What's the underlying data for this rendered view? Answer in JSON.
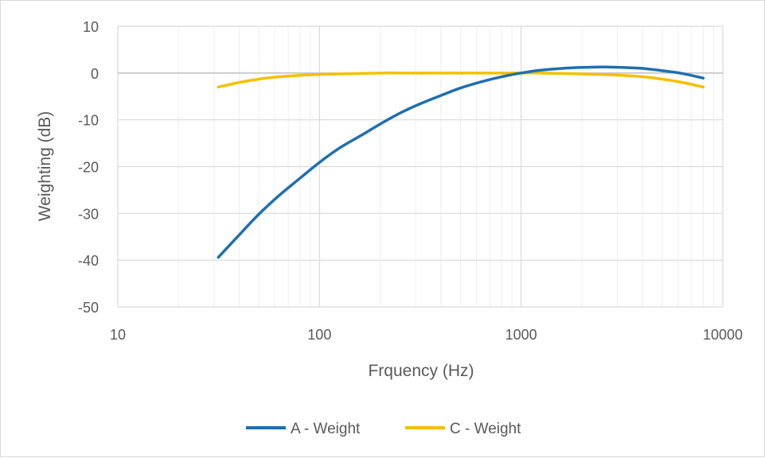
{
  "chart_data": {
    "type": "line",
    "title": "",
    "xlabel": "Frquency (Hz)",
    "ylabel": "Weighting (dB)",
    "x_scale": "log",
    "xlim": [
      10,
      10000
    ],
    "ylim": [
      -50,
      10
    ],
    "x_ticks": [
      "10",
      "100",
      "1000",
      "10000"
    ],
    "y_ticks": [
      "10",
      "0",
      "-10",
      "-20",
      "-30",
      "-40",
      "-50"
    ],
    "grid": true,
    "legend_position": "bottom",
    "series": [
      {
        "name": "A - Weight",
        "color": "#1f6fb0",
        "x": [
          31.5,
          40,
          50,
          63,
          80,
          100,
          125,
          160,
          200,
          250,
          315,
          400,
          500,
          630,
          800,
          1000,
          1250,
          1600,
          2000,
          2500,
          3150,
          4000,
          5000,
          6300,
          8000
        ],
        "y": [
          -39.4,
          -34.6,
          -30.2,
          -26.2,
          -22.5,
          -19.1,
          -16.1,
          -13.4,
          -10.9,
          -8.6,
          -6.6,
          -4.8,
          -3.2,
          -1.9,
          -0.8,
          0,
          0.6,
          1.0,
          1.2,
          1.3,
          1.2,
          1.0,
          0.5,
          -0.1,
          -1.1
        ]
      },
      {
        "name": "C - Weight",
        "color": "#f5c000",
        "x": [
          31.5,
          40,
          50,
          63,
          80,
          100,
          125,
          160,
          200,
          250,
          315,
          400,
          500,
          630,
          800,
          1000,
          1250,
          1600,
          2000,
          2500,
          3150,
          4000,
          5000,
          6300,
          8000
        ],
        "y": [
          -3.0,
          -2.0,
          -1.3,
          -0.8,
          -0.5,
          -0.3,
          -0.2,
          -0.1,
          0,
          0,
          0,
          0,
          0,
          0,
          0,
          0,
          0,
          -0.1,
          -0.2,
          -0.3,
          -0.5,
          -0.8,
          -1.3,
          -2.0,
          -3.0
        ]
      }
    ]
  }
}
